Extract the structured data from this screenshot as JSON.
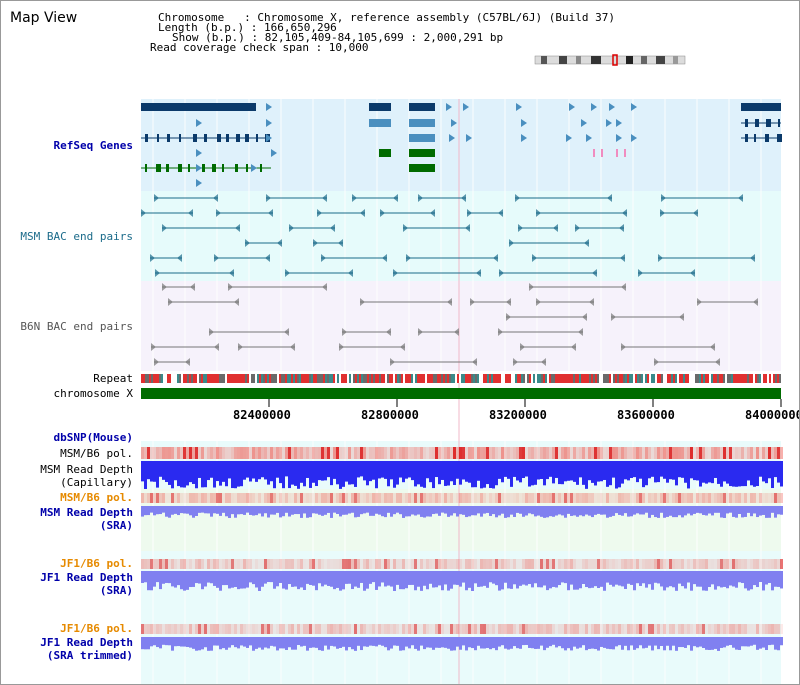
{
  "header": {
    "title": "Map View",
    "info": [
      "Chromosome   : Chromosome X, reference assembly (C57BL/6J) (Build 37)",
      "Length (b.p.) : 166,650,296",
      "Show (b.p.) : 82,105,409-84,105,699 : 2,000,291 bp",
      "Read coverage check span : 10,000"
    ]
  },
  "tracks": {
    "refseq": "RefSeq Genes",
    "msm_bac": "MSM BAC end pairs",
    "b6n_bac": "B6N BAC end pairs",
    "repeat": "Repeat",
    "chromosome": "chromosome X"
  },
  "axis": {
    "ticks": [
      "82400000",
      "82800000",
      "83200000",
      "83600000",
      "84000000"
    ]
  },
  "variation": {
    "dbsnp": "dbSNP(Mouse)",
    "msm_b6_pol_1": "MSM/B6 pol.",
    "msm_read_depth_cap": [
      "MSM Read Depth",
      "(Capillary)"
    ],
    "msm_b6_pol_2": "MSM/B6 pol.",
    "msm_read_depth_sra": [
      "MSM Read Depth",
      "(SRA)"
    ],
    "jf1_b6_pol_1": "JF1/B6 pol.",
    "jf1_read_depth_sra": [
      "JF1 Read Depth",
      "(SRA)"
    ],
    "jf1_b6_pol_2": "JF1/B6 pol.",
    "jf1_read_depth_trim": [
      "JF1 Read Depth",
      "(SRA trimmed)"
    ]
  },
  "colors": {
    "refseq_bg": "#dff1fb",
    "msm_bg": "#e6fbfb",
    "b6n_bg": "#f6f2fb",
    "gene_dark": "#0b3a6a",
    "gene_mid": "#4a8fbf",
    "gene_green": "#006b00",
    "msm_color": "#1b6b8a",
    "b6n_color": "#777777",
    "orange": "#e68a00",
    "blue_label": "#0000aa",
    "depth_blue": "#2a2af0",
    "depth_light": "#8080f0"
  }
}
